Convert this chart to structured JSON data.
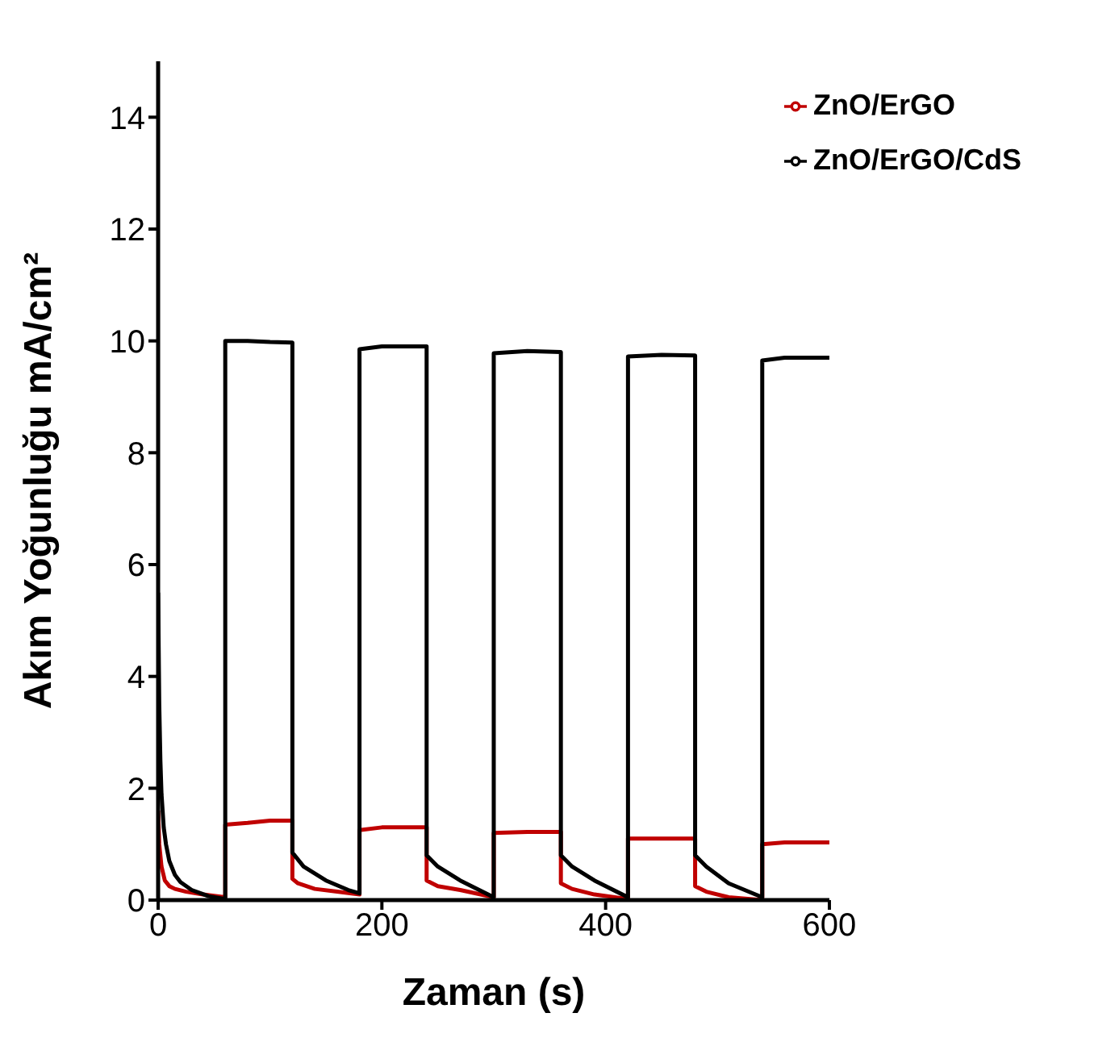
{
  "chart_data": {
    "type": "line",
    "xlabel": "Zaman (s)",
    "ylabel": "Akım Yoğunluğu mA/cm²",
    "xlim": [
      0,
      600
    ],
    "xticks": [
      0,
      200,
      400,
      600
    ],
    "ylim": [
      0,
      15
    ],
    "yticks": [
      0,
      2,
      4,
      6,
      8,
      10,
      12,
      14
    ],
    "grid": false,
    "legend": "top right",
    "marker": "none",
    "line_style": "solid",
    "series": [
      {
        "name": "ZnO/ErGO",
        "color": "#c00000",
        "x": [
          0,
          1,
          3,
          6,
          10,
          15,
          25,
          40,
          60,
          60,
          80,
          100,
          120,
          120,
          125,
          140,
          160,
          180,
          180,
          200,
          240,
          240,
          250,
          270,
          300,
          300,
          330,
          360,
          360,
          370,
          390,
          420,
          420,
          450,
          480,
          480,
          490,
          510,
          540,
          540,
          560,
          600
        ],
        "values": [
          1.6,
          1.0,
          0.6,
          0.35,
          0.25,
          0.2,
          0.15,
          0.1,
          0.05,
          1.35,
          1.38,
          1.42,
          1.42,
          0.38,
          0.3,
          0.2,
          0.15,
          0.1,
          1.25,
          1.3,
          1.3,
          0.35,
          0.25,
          0.18,
          0.05,
          1.2,
          1.22,
          1.22,
          0.3,
          0.2,
          0.1,
          0.02,
          1.1,
          1.1,
          1.1,
          0.25,
          0.15,
          0.05,
          0.0,
          1.0,
          1.03,
          1.03
        ]
      },
      {
        "name": "ZnO/ErGO/CdS",
        "color": "#000000",
        "x": [
          0,
          1,
          2,
          3,
          5,
          7,
          10,
          15,
          20,
          30,
          45,
          60,
          60,
          80,
          100,
          120,
          120,
          130,
          150,
          170,
          180,
          180,
          200,
          240,
          240,
          250,
          270,
          300,
          300,
          330,
          360,
          360,
          370,
          390,
          420,
          420,
          450,
          480,
          480,
          490,
          510,
          540,
          540,
          560,
          600
        ],
        "values": [
          5.5,
          3.5,
          2.5,
          1.9,
          1.3,
          1.0,
          0.7,
          0.45,
          0.32,
          0.18,
          0.07,
          0.02,
          10.0,
          10.0,
          9.98,
          9.97,
          0.85,
          0.6,
          0.35,
          0.18,
          0.12,
          9.85,
          9.9,
          9.9,
          0.8,
          0.6,
          0.35,
          0.05,
          9.78,
          9.82,
          9.8,
          0.8,
          0.6,
          0.35,
          0.05,
          9.72,
          9.75,
          9.74,
          0.8,
          0.6,
          0.3,
          0.05,
          9.65,
          9.7,
          9.7
        ]
      }
    ]
  }
}
